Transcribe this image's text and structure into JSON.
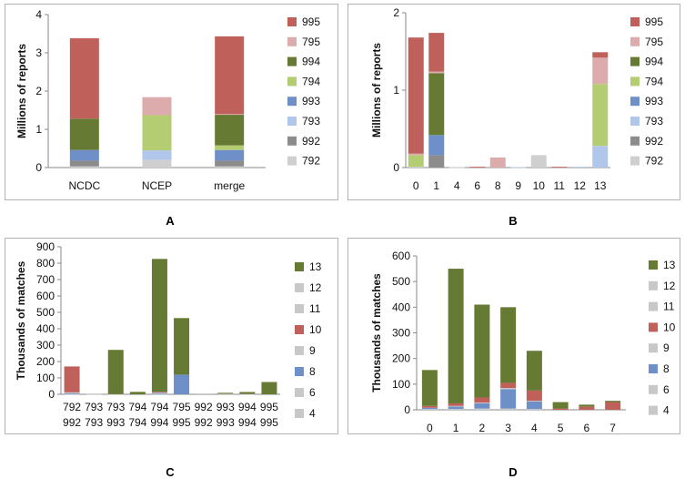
{
  "colors": {
    "995": "#c0605a",
    "795": "#dcabab",
    "994": "#667a33",
    "794": "#b5cd72",
    "993": "#6e8fc8",
    "793": "#b0c6ea",
    "992": "#8c8c8c",
    "792": "#cfcfcf",
    "13": "#667a33",
    "12": "#c8c8c8",
    "11": "#c8c8c8",
    "10": "#c0605a",
    "9": "#c8c8c8",
    "8": "#6e8fc8",
    "6": "#c8c8c8",
    "4": "#c8c8c8"
  },
  "chart_data": [
    {
      "panel": "A",
      "type": "bar",
      "stacked": true,
      "ylabel": "Millions of reports",
      "ylim": [
        0,
        4
      ],
      "yticks": [
        "0",
        "1",
        "2",
        "3",
        "4"
      ],
      "categories": [
        "NCDC",
        "NCEP",
        "merge"
      ],
      "legend": [
        "995",
        "795",
        "994",
        "794",
        "993",
        "793",
        "992",
        "792"
      ],
      "series": [
        {
          "name": "792",
          "values": [
            0.03,
            0.2,
            0.03
          ]
        },
        {
          "name": "992",
          "values": [
            0.15,
            0.0,
            0.15
          ]
        },
        {
          "name": "793",
          "values": [
            0.0,
            0.25,
            0.0
          ]
        },
        {
          "name": "993",
          "values": [
            0.28,
            0.0,
            0.28
          ]
        },
        {
          "name": "794",
          "values": [
            0.0,
            0.92,
            0.12
          ]
        },
        {
          "name": "994",
          "values": [
            0.82,
            0.0,
            0.8
          ]
        },
        {
          "name": "795",
          "values": [
            0.0,
            0.47,
            0.02
          ]
        },
        {
          "name": "995",
          "values": [
            2.1,
            0.0,
            2.03
          ]
        }
      ]
    },
    {
      "panel": "B",
      "type": "bar",
      "stacked": true,
      "ylabel": "Millions of reports",
      "ylim": [
        0,
        2
      ],
      "yticks": [
        "0",
        "1",
        "2"
      ],
      "categories": [
        "0",
        "1",
        "4",
        "6",
        "8",
        "9",
        "10",
        "11",
        "12",
        "13"
      ],
      "legend": [
        "995",
        "795",
        "994",
        "794",
        "993",
        "793",
        "992",
        "792"
      ],
      "series": [
        {
          "name": "792",
          "values": [
            0.01,
            0.0,
            0.005,
            0.0,
            0.0,
            0.0,
            0.16,
            0.0,
            0.0,
            0.0
          ]
        },
        {
          "name": "992",
          "values": [
            0.0,
            0.16,
            0.0,
            0.0,
            0.0,
            0.0,
            0.0,
            0.0,
            0.0,
            0.0
          ]
        },
        {
          "name": "793",
          "values": [
            0.0,
            0.0,
            0.0,
            0.0,
            0.0,
            0.005,
            0.0,
            0.0,
            0.01,
            0.28
          ]
        },
        {
          "name": "993",
          "values": [
            0.0,
            0.26,
            0.0,
            0.0,
            0.0,
            0.0,
            0.0,
            0.0,
            0.0,
            0.0
          ]
        },
        {
          "name": "794",
          "values": [
            0.15,
            0.0,
            0.0,
            0.0,
            0.0,
            0.0,
            0.0,
            0.0,
            0.0,
            0.8
          ]
        },
        {
          "name": "994",
          "values": [
            0.0,
            0.8,
            0.0,
            0.0,
            0.0,
            0.0,
            0.0,
            0.0,
            0.0,
            0.0
          ]
        },
        {
          "name": "795",
          "values": [
            0.02,
            0.02,
            0.0,
            0.0,
            0.13,
            0.0,
            0.0,
            0.0,
            0.0,
            0.34
          ]
        },
        {
          "name": "995",
          "values": [
            1.5,
            0.5,
            0.0,
            0.01,
            0.0,
            0.0,
            0.0,
            0.01,
            0.0,
            0.07
          ]
        }
      ]
    },
    {
      "panel": "C",
      "type": "bar",
      "stacked": true,
      "ylabel": "Thousands of matches",
      "ylim": [
        0,
        900
      ],
      "yticks": [
        "0",
        "100",
        "200",
        "300",
        "400",
        "500",
        "600",
        "700",
        "800",
        "900"
      ],
      "categories": [
        [
          "792",
          "992"
        ],
        [
          "793",
          "793"
        ],
        [
          "793",
          "993"
        ],
        [
          "794",
          "794"
        ],
        [
          "794",
          "994"
        ],
        [
          "795",
          "995"
        ],
        [
          "992",
          "992"
        ],
        [
          "993",
          "993"
        ],
        [
          "994",
          "994"
        ],
        [
          "995",
          "995"
        ]
      ],
      "legend": [
        "13",
        "12",
        "11",
        "10",
        "9",
        "8",
        "6",
        "4"
      ],
      "series": [
        {
          "name": "4",
          "values": [
            2,
            0,
            1,
            0,
            3,
            0,
            0,
            0,
            0,
            0
          ]
        },
        {
          "name": "6",
          "values": [
            0,
            0,
            0,
            0,
            0,
            0,
            0,
            0,
            0,
            0
          ]
        },
        {
          "name": "8",
          "values": [
            5,
            0,
            0,
            0,
            5,
            120,
            0,
            0,
            0,
            0
          ]
        },
        {
          "name": "9",
          "values": [
            5,
            1,
            0,
            0,
            5,
            0,
            0,
            3,
            2,
            0
          ]
        },
        {
          "name": "10",
          "values": [
            158,
            0,
            0,
            0,
            3,
            0,
            0,
            0,
            0,
            0
          ]
        },
        {
          "name": "11",
          "values": [
            0,
            0,
            0,
            0,
            0,
            0,
            0,
            0,
            0,
            0
          ]
        },
        {
          "name": "12",
          "values": [
            0,
            0,
            0,
            0,
            0,
            0,
            5,
            0,
            0,
            0
          ]
        },
        {
          "name": "13",
          "values": [
            0,
            0,
            270,
            15,
            810,
            345,
            0,
            6,
            12,
            75
          ]
        }
      ]
    },
    {
      "panel": "D",
      "type": "bar",
      "stacked": true,
      "ylabel": "Thousands of matches",
      "ylim": [
        0,
        600
      ],
      "yticks": [
        "0",
        "100",
        "200",
        "300",
        "400",
        "500",
        "600"
      ],
      "categories": [
        "0",
        "1",
        "2",
        "3",
        "4",
        "5",
        "6",
        "7"
      ],
      "legend": [
        "13",
        "12",
        "11",
        "10",
        "9",
        "8",
        "6",
        "4"
      ],
      "series": [
        {
          "name": "4",
          "values": [
            3,
            3,
            5,
            5,
            3,
            0,
            0,
            0
          ]
        },
        {
          "name": "6",
          "values": [
            0,
            0,
            0,
            0,
            0,
            0,
            0,
            0
          ]
        },
        {
          "name": "8",
          "values": [
            5,
            10,
            20,
            75,
            30,
            0,
            0,
            0
          ]
        },
        {
          "name": "9",
          "values": [
            0,
            2,
            3,
            5,
            2,
            0,
            0,
            0
          ]
        },
        {
          "name": "10",
          "values": [
            7,
            10,
            20,
            20,
            40,
            5,
            12,
            30
          ]
        },
        {
          "name": "11",
          "values": [
            0,
            0,
            0,
            0,
            0,
            0,
            0,
            0
          ]
        },
        {
          "name": "12",
          "values": [
            0,
            0,
            0,
            0,
            0,
            0,
            0,
            0
          ]
        },
        {
          "name": "13",
          "values": [
            140,
            525,
            362,
            295,
            155,
            25,
            8,
            5
          ]
        }
      ]
    }
  ]
}
